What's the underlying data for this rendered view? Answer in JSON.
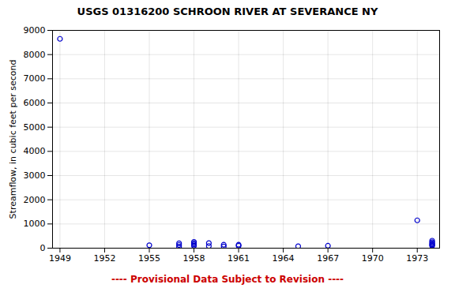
{
  "chart_data": {
    "type": "scatter",
    "title": "USGS 01316200 SCHROON RIVER AT SEVERANCE NY",
    "subtitle": "---- Provisional Data Subject to Revision ----",
    "ylabel": "Streamflow, in cubic feet per second",
    "x": [
      1949,
      1955,
      1957,
      1957,
      1957,
      1958,
      1958,
      1958,
      1958,
      1959,
      1959,
      1960,
      1960,
      1961,
      1961,
      1965,
      1967,
      1973,
      1974,
      1974,
      1974,
      1974,
      1974,
      1974
    ],
    "values": [
      8650,
      120,
      200,
      130,
      60,
      260,
      200,
      150,
      100,
      210,
      90,
      140,
      70,
      140,
      100,
      80,
      100,
      1150,
      310,
      250,
      200,
      160,
      130,
      95
    ],
    "color": "#0000cc",
    "marker": "circle",
    "xlim": [
      1948.5,
      1974.5
    ],
    "ylim": [
      0,
      9000
    ],
    "xticks": [
      1949,
      1952,
      1955,
      1958,
      1961,
      1964,
      1967,
      1970,
      1973
    ],
    "yticks": [
      0,
      1000,
      2000,
      3000,
      4000,
      5000,
      6000,
      7000,
      8000,
      9000
    ],
    "grid": true
  }
}
